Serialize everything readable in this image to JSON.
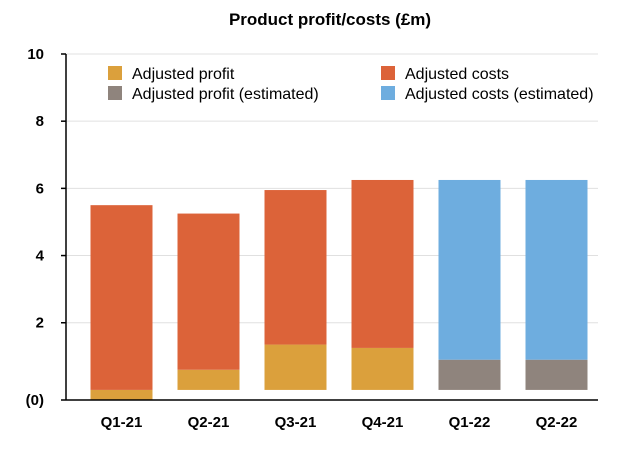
{
  "chart_data": {
    "type": "bar",
    "title": "Product profit/costs (£m)",
    "xlabel": "",
    "ylabel": "",
    "categories": [
      "Q1-21",
      "Q2-21",
      "Q3-21",
      "Q4-21",
      "Q1-22",
      "Q2-22"
    ],
    "ylim": [
      -0.3,
      10
    ],
    "y_ticks": [
      {
        "value": -0.3,
        "label": "(0)"
      },
      {
        "value": 2,
        "label": "2"
      },
      {
        "value": 4,
        "label": "4"
      },
      {
        "value": 6,
        "label": "6"
      },
      {
        "value": 8,
        "label": "8"
      },
      {
        "value": 10,
        "label": "10"
      }
    ],
    "baseline": 0,
    "grid": true,
    "legend_position": "top",
    "series": [
      {
        "name": "Adjusted profit",
        "color": "#dba03c",
        "values": [
          -0.3,
          0.6,
          1.35,
          1.25,
          null,
          null
        ]
      },
      {
        "name": "Adjusted costs",
        "color": "#dc6339",
        "values": [
          5.5,
          4.65,
          4.6,
          5.0,
          null,
          null
        ]
      },
      {
        "name": "Adjusted profit (estimated)",
        "color": "#8f847d",
        "values": [
          null,
          null,
          null,
          null,
          0.9,
          0.9
        ]
      },
      {
        "name": "Adjusted costs (estimated)",
        "color": "#6eaddf",
        "values": [
          null,
          null,
          null,
          null,
          5.35,
          5.35
        ]
      }
    ],
    "legend_order": [
      0,
      1,
      2,
      3
    ]
  }
}
